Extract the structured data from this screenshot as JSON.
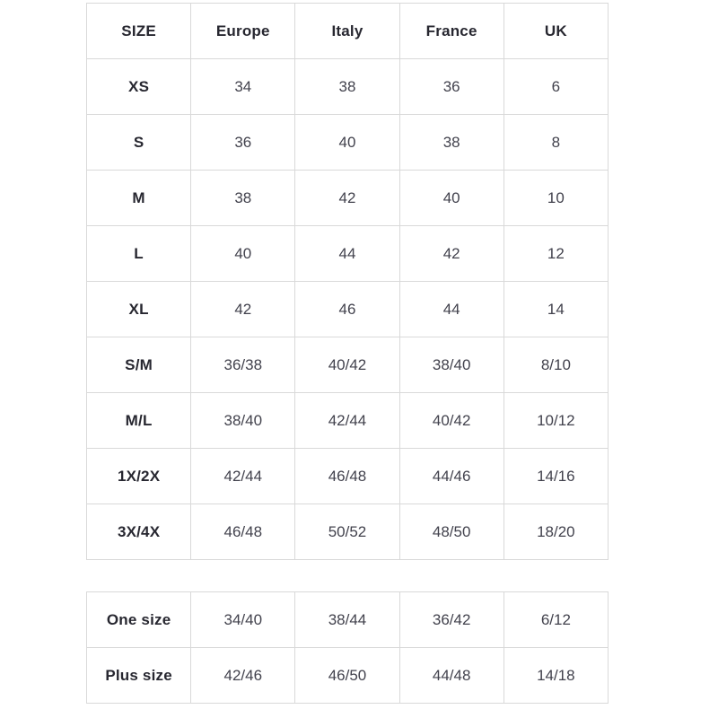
{
  "colors": {
    "border": "#d9d9d9",
    "header_text": "#272730",
    "cell_text": "#42424d",
    "background": "#ffffff"
  },
  "main_table": {
    "headers": [
      "SIZE",
      "Europe",
      "Italy",
      "France",
      "UK"
    ],
    "rows": [
      {
        "label": "XS",
        "values": [
          "34",
          "38",
          "36",
          "6"
        ]
      },
      {
        "label": "S",
        "values": [
          "36",
          "40",
          "38",
          "8"
        ]
      },
      {
        "label": "M",
        "values": [
          "38",
          "42",
          "40",
          "10"
        ]
      },
      {
        "label": "L",
        "values": [
          "40",
          "44",
          "42",
          "12"
        ]
      },
      {
        "label": "XL",
        "values": [
          "42",
          "46",
          "44",
          "14"
        ]
      },
      {
        "label": "S/M",
        "values": [
          "36/38",
          "40/42",
          "38/40",
          "8/10"
        ]
      },
      {
        "label": "M/L",
        "values": [
          "38/40",
          "42/44",
          "40/42",
          "10/12"
        ]
      },
      {
        "label": "1X/2X",
        "values": [
          "42/44",
          "46/48",
          "44/46",
          "14/16"
        ]
      },
      {
        "label": "3X/4X",
        "values": [
          "46/48",
          "50/52",
          "48/50",
          "18/20"
        ]
      }
    ]
  },
  "secondary_table": {
    "rows": [
      {
        "label": "One size",
        "values": [
          "34/40",
          "38/44",
          "36/42",
          "6/12"
        ]
      },
      {
        "label": "Plus size",
        "values": [
          "42/46",
          "46/50",
          "44/48",
          "14/18"
        ]
      }
    ]
  }
}
